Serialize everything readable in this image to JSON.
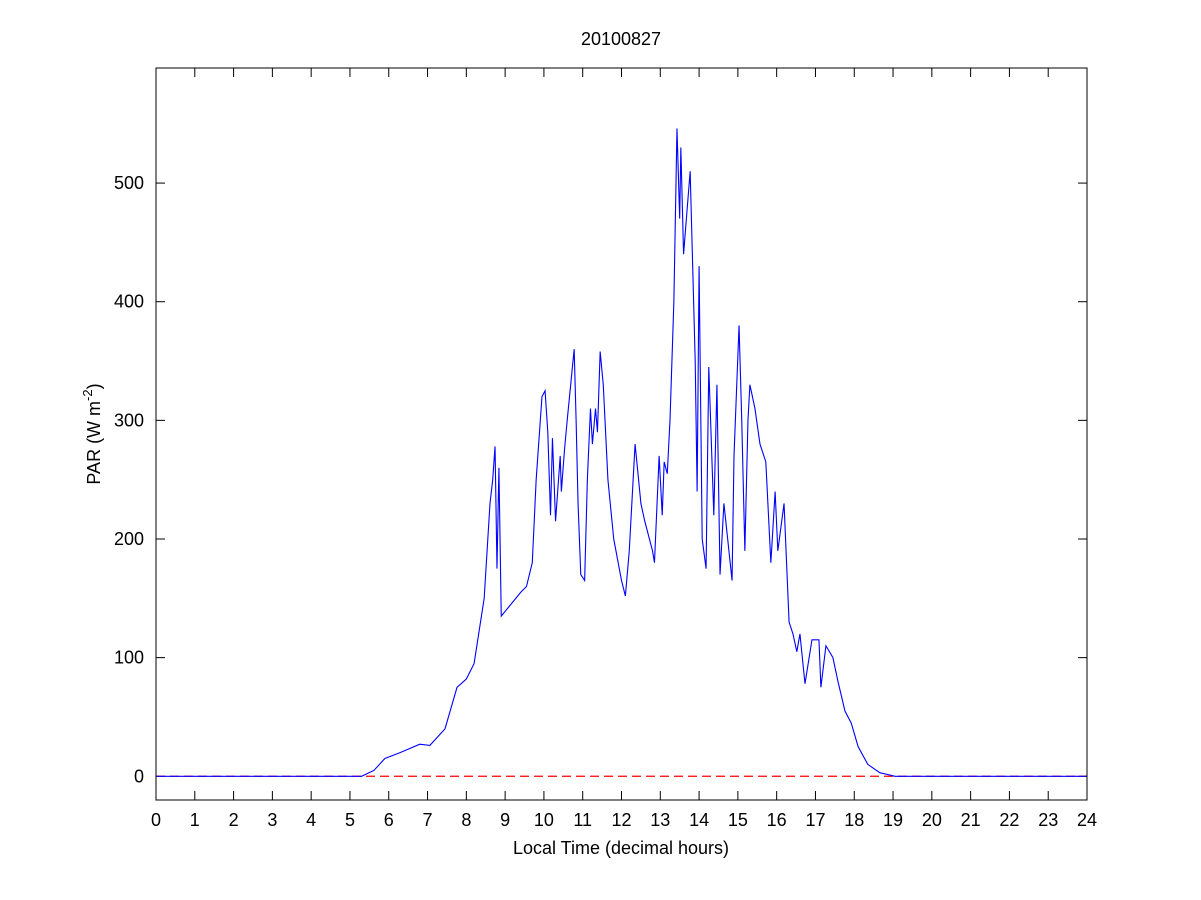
{
  "chart_data": {
    "type": "line",
    "title": "20100827",
    "xlabel": "Local Time (decimal hours)",
    "ylabel": [
      "PAR (W m",
      "-2",
      ")"
    ],
    "x": [
      0,
      5.3,
      5.62,
      5.9,
      6.3,
      6.8,
      7.06,
      7.45,
      7.76,
      8.0,
      8.2,
      8.46,
      8.61,
      8.68,
      8.74,
      8.79,
      8.84,
      8.9,
      9.4,
      9.55,
      9.7,
      9.8,
      9.95,
      10.03,
      10.1,
      10.17,
      10.22,
      10.3,
      10.42,
      10.45,
      10.53,
      10.6,
      10.78,
      10.83,
      10.88,
      10.95,
      11.05,
      11.12,
      11.2,
      11.25,
      11.33,
      11.38,
      11.45,
      11.53,
      11.65,
      11.8,
      12.0,
      12.1,
      12.2,
      12.3,
      12.35,
      12.5,
      12.6,
      12.8,
      12.85,
      12.97,
      13.05,
      13.1,
      13.18,
      13.25,
      13.35,
      13.43,
      13.5,
      13.53,
      13.6,
      13.77,
      13.9,
      13.95,
      14.0,
      14.08,
      14.18,
      14.25,
      14.38,
      14.46,
      14.54,
      14.64,
      14.85,
      14.9,
      15.03,
      15.1,
      15.18,
      15.26,
      15.31,
      15.44,
      15.57,
      15.72,
      15.85,
      15.96,
      16.03,
      16.19,
      16.32,
      16.42,
      16.52,
      16.6,
      16.73,
      16.91,
      17.09,
      17.14,
      17.27,
      17.45,
      17.58,
      17.76,
      17.92,
      18.1,
      18.35,
      18.66,
      19.05,
      24
    ],
    "series": [
      {
        "color": "#0000ff",
        "values": [
          0,
          0,
          5,
          15,
          20,
          27,
          26,
          40,
          75,
          82,
          95,
          150,
          230,
          250,
          278,
          175,
          260,
          135,
          155,
          160,
          180,
          250,
          320,
          325,
          290,
          220,
          285,
          215,
          270,
          240,
          275,
          300,
          360,
          300,
          230,
          170,
          165,
          250,
          310,
          280,
          310,
          290,
          358,
          330,
          250,
          200,
          165,
          152,
          190,
          250,
          280,
          230,
          215,
          190,
          180,
          270,
          220,
          265,
          255,
          300,
          400,
          546,
          470,
          530,
          440,
          510,
          350,
          240,
          430,
          200,
          175,
          345,
          220,
          330,
          170,
          230,
          165,
          270,
          380,
          300,
          190,
          300,
          330,
          310,
          280,
          265,
          180,
          240,
          190,
          230,
          130,
          120,
          105,
          120,
          78,
          115,
          115,
          75,
          110,
          100,
          80,
          55,
          45,
          25,
          10,
          3,
          0,
          0
        ]
      }
    ],
    "hline": {
      "value": 0,
      "color": "#ff0000",
      "dash": true
    },
    "xlim": [
      0,
      24
    ],
    "xticks": [
      0,
      1,
      2,
      3,
      4,
      5,
      6,
      7,
      8,
      9,
      10,
      11,
      12,
      13,
      14,
      15,
      16,
      17,
      18,
      19,
      20,
      21,
      22,
      23,
      24
    ],
    "ylim": [
      -20,
      597
    ],
    "yticks": [
      0,
      100,
      200,
      300,
      400,
      500
    ],
    "grid": false
  }
}
